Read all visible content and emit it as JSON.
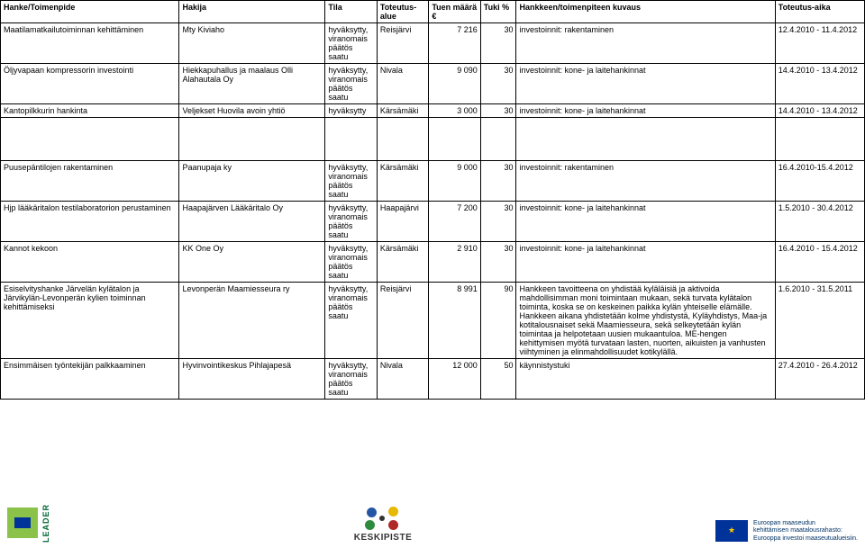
{
  "headers": {
    "hanke": "Hanke/Toimenpide",
    "hakija": "Hakija",
    "tila": "Tila",
    "alue": "Toteutus-alue",
    "maara": "Tuen määrä €",
    "tuki": "Tuki %",
    "kuvaus": "Hankkeen/toimenpiteen kuvaus",
    "aika": "Toteutus-aika"
  },
  "tila_hyv": "hyväksytty, viranomais päätös saatu",
  "tila_hyv_short": "hyväksytty",
  "rows": [
    {
      "hanke": "Maatilamatkailutoiminnan kehittäminen",
      "hakija": "Mty Kiviaho",
      "tila": "hyväksytty, viranomais päätös saatu",
      "alue": "Reisjärvi",
      "maara": "7 216",
      "tuki": "30",
      "kuvaus": "investoinnit: rakentaminen",
      "aika": "12.4.2010 - 11.4.2012"
    },
    {
      "hanke": "Öljyvapaan kompressorin investointi",
      "hakija": "Hiekkapuhallus ja maalaus Olli Alahautala Oy",
      "tila": "hyväksytty, viranomais päätös saatu",
      "alue": "Nivala",
      "maara": "9 090",
      "tuki": "30",
      "kuvaus": "investoinnit: kone- ja laitehankinnat",
      "aika": "14.4.2010 - 13.4.2012"
    },
    {
      "hanke": "Kantopilkkurin hankinta",
      "hakija": "Veljekset Huovila avoin yhtiö",
      "tila": "hyväksytty",
      "alue": "Kärsämäki",
      "maara": "3 000",
      "tuki": "30",
      "kuvaus": "investoinnit: kone- ja laitehankinnat",
      "aika": "14.4.2010 - 13.4.2012"
    },
    {
      "hanke": "Puusepäntilojen rakentaminen",
      "hakija": "Paanupaja ky",
      "tila": "hyväksytty, viranomais päätös saatu",
      "alue": "Kärsämäki",
      "maara": "9 000",
      "tuki": "30",
      "kuvaus": "investoinnit: rakentaminen",
      "aika": "16.4.2010-15.4.2012"
    },
    {
      "hanke": "Hjp lääkäritalon testilaboratorion perustaminen",
      "hakija": "Haapajärven Lääkäritalo Oy",
      "tila": "hyväksytty, viranomais päätös saatu",
      "alue": "Haapajärvi",
      "maara": "7 200",
      "tuki": "30",
      "kuvaus": "investoinnit: kone- ja laitehankinnat",
      "aika": "1.5.2010 - 30.4.2012"
    },
    {
      "hanke": "Kannot kekoon",
      "hakija": "KK One Oy",
      "tila": "hyväksytty, viranomais päätös saatu",
      "alue": "Kärsämäki",
      "maara": "2 910",
      "tuki": "30",
      "kuvaus": "investoinnit: kone- ja laitehankinnat",
      "aika": "16.4.2010 - 15.4.2012"
    },
    {
      "hanke": "Esiselvityshanke Järvelän kylätalon ja Järvikylän-Levonperän kylien toiminnan kehittämiseksi",
      "hakija": "Levonperän Maamiesseura ry",
      "tila": "hyväksytty, viranomais päätös saatu",
      "alue": "Reisjärvi",
      "maara": "8 991",
      "tuki": "90",
      "kuvaus": "Hankkeen tavoitteena on yhdistää kyläläisiä ja aktivoida mahdollisimman moni toimintaan mukaan, sekä turvata kylätalon toiminta, koska se on keskeinen paikka kylän yhteiselle elämälle. Hankkeen aikana yhdistetään kolme yhdistystä, Kyläyhdistys, Maa-ja kotitalousnaiset sekä Maamiesseura, sekä selkeytetään kylän toimintaa ja helpotetaan uusien mukaantuloa. ME-hengen kehittymisen myötä turvataan lasten, nuorten, aikuisten ja vanhusten viihtyminen ja elinmahdollisuudet kotikylällä.",
      "aika": "1.6.2010 - 31.5.2011"
    },
    {
      "hanke": "Ensimmäisen työntekijän palkkaaminen",
      "hakija": "Hyvinvointikeskus Pihlajapesä",
      "tila": "hyväksytty, viranomais päätös saatu",
      "alue": "Nivala",
      "maara": "12 000",
      "tuki": "50",
      "kuvaus": "käynnistystuki",
      "aika": "27.4.2010 - 26.4.2012"
    }
  ],
  "footer": {
    "leader": "LEADER",
    "kp": "KESKIPISTE",
    "eu1": "Euroopan maaseudun",
    "eu2": "kehittämisen maatalousrahasto:",
    "eu3": "Eurooppa investoi maaseutualueisiin."
  },
  "colors": {
    "leader_bg": "#8bc34a",
    "leader_text": "#006633",
    "eu_flag": "#003399",
    "eu_star": "#ffcc00",
    "kp_blue": "#2556a3",
    "kp_yellow": "#e6b800",
    "kp_green": "#2e8b3d",
    "kp_red": "#b02828"
  }
}
